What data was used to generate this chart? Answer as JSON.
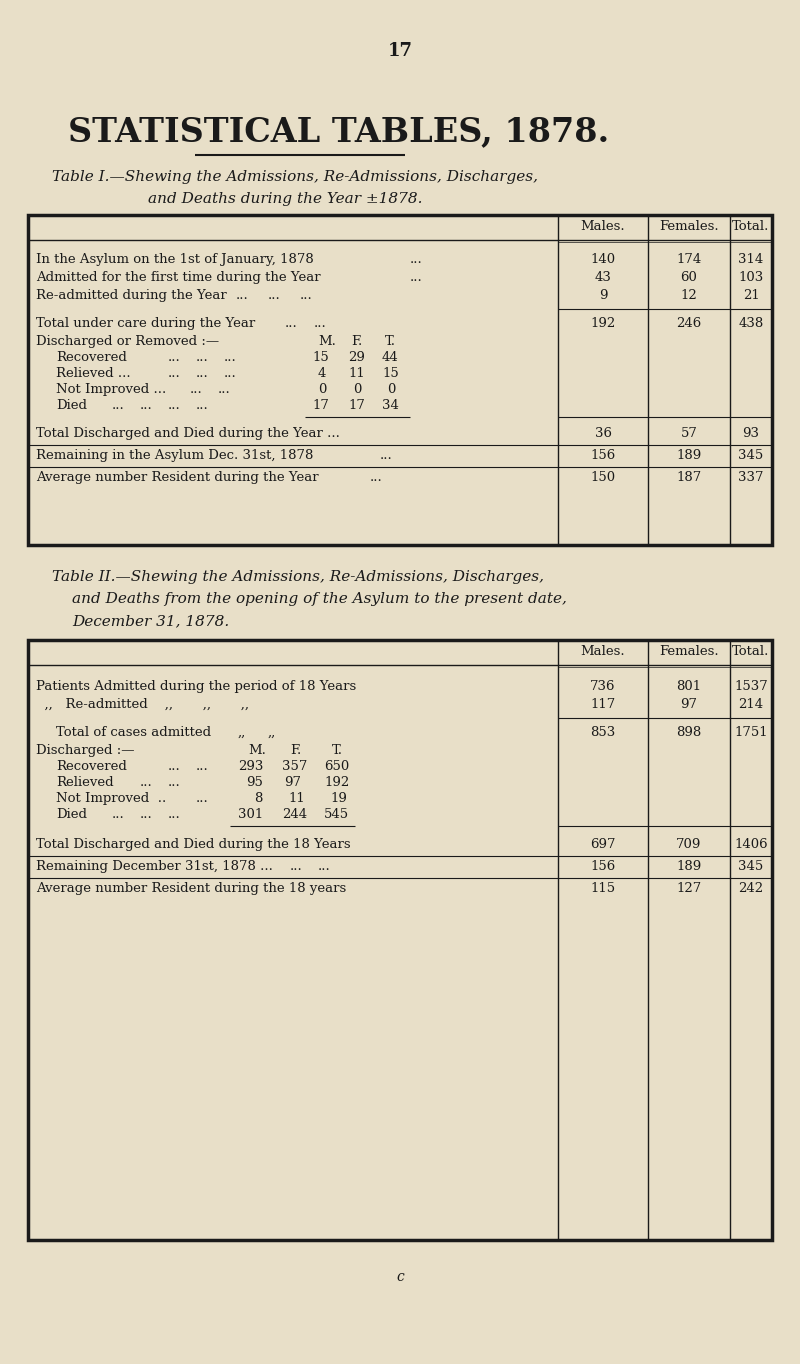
{
  "bg_color": "#e8dfc8",
  "page_number": "17",
  "main_title": "STATISTICAL TABLES, 1878.",
  "t1_cap1": "Table I.—Shewing the Admissions, Re-Admissions, Discharges,",
  "t1_cap2": "and Deaths during the Year ±1878.",
  "t2_cap1": "Table II.—Shewing the Admissions, Re-Admissions, Discharges,",
  "t2_cap2": "    and Deaths from the opening of the Asylum to the present date,",
  "t2_cap3": "    December 31, 1878.",
  "footer": "c",
  "col_labels": [
    "Males.",
    "Females.",
    "Total."
  ]
}
